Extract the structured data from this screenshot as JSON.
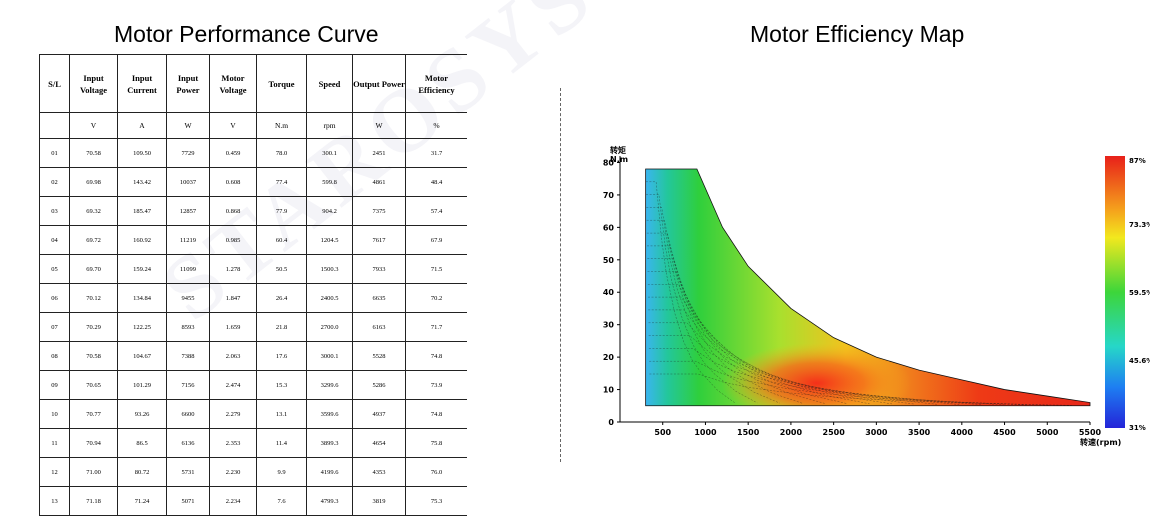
{
  "left_title": "Motor Performance Curve",
  "right_title": "Motor Efficiency Map",
  "table": {
    "headers": [
      "S/L",
      "Input Voltage",
      "Input Current",
      "Input Power",
      "Motor Voltage",
      "Torque",
      "Speed",
      "Output Power",
      "Motor Efficiency"
    ],
    "units": [
      "",
      "V",
      "A",
      "W",
      "V",
      "N.m",
      "rpm",
      "W",
      "%"
    ],
    "rows": [
      [
        "01",
        "70.58",
        "109.50",
        "7729",
        "0.459",
        "78.0",
        "300.1",
        "2451",
        "31.7"
      ],
      [
        "02",
        "69.98",
        "143.42",
        "10037",
        "0.608",
        "77.4",
        "599.8",
        "4861",
        "48.4"
      ],
      [
        "03",
        "69.32",
        "185.47",
        "12857",
        "0.868",
        "77.9",
        "904.2",
        "7375",
        "57.4"
      ],
      [
        "04",
        "69.72",
        "160.92",
        "11219",
        "0.985",
        "60.4",
        "1204.5",
        "7617",
        "67.9"
      ],
      [
        "05",
        "69.70",
        "159.24",
        "11099",
        "1.278",
        "50.5",
        "1500.3",
        "7933",
        "71.5"
      ],
      [
        "06",
        "70.12",
        "134.84",
        "9455",
        "1.847",
        "26.4",
        "2400.5",
        "6635",
        "70.2"
      ],
      [
        "07",
        "70.29",
        "122.25",
        "8593",
        "1.659",
        "21.8",
        "2700.0",
        "6163",
        "71.7"
      ],
      [
        "08",
        "70.58",
        "104.67",
        "7388",
        "2.063",
        "17.6",
        "3000.1",
        "5528",
        "74.8"
      ],
      [
        "09",
        "70.65",
        "101.29",
        "7156",
        "2.474",
        "15.3",
        "3299.6",
        "5286",
        "73.9"
      ],
      [
        "10",
        "70.77",
        "93.26",
        "6600",
        "2.279",
        "13.1",
        "3599.6",
        "4937",
        "74.8"
      ],
      [
        "11",
        "70.94",
        "86.5",
        "6136",
        "2.353",
        "11.4",
        "3899.3",
        "4654",
        "75.8"
      ],
      [
        "12",
        "71.00",
        "80.72",
        "5731",
        "2.230",
        "9.9",
        "4199.6",
        "4353",
        "76.0"
      ],
      [
        "13",
        "71.18",
        "71.24",
        "5071",
        "2.234",
        "7.6",
        "4799.3",
        "3819",
        "75.3"
      ]
    ]
  },
  "chart_data": {
    "type": "heatmap",
    "title": "Motor Efficiency Map",
    "ylabel_line1": "转矩",
    "ylabel_line2": "N.m",
    "xlabel": "转速(rpm)",
    "xlim": [
      0,
      5500
    ],
    "ylim": [
      0,
      82
    ],
    "x_ticks": [
      500,
      1000,
      1500,
      2000,
      2500,
      3000,
      3500,
      4000,
      4500,
      5000,
      5500
    ],
    "y_ticks": [
      0,
      10,
      20,
      30,
      40,
      50,
      60,
      70,
      80
    ],
    "colorbar": {
      "min": 31,
      "max": 87,
      "labels": [
        "87%",
        "73.3%",
        "59.5%",
        "45.6%",
        "31%"
      ]
    },
    "envelope_rpm": [
      300,
      900,
      1200,
      1500,
      2000,
      2500,
      3000,
      3500,
      4000,
      4500,
      5000,
      5500
    ],
    "envelope_torque": [
      78,
      78,
      60,
      48,
      35,
      26,
      20,
      16,
      13,
      10,
      8,
      6
    ],
    "grid": false
  }
}
